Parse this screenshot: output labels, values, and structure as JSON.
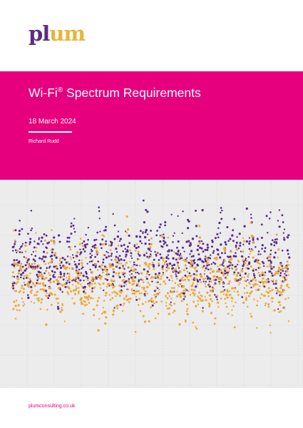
{
  "brand": {
    "logo_part1": "pl",
    "logo_part2": "um",
    "color_purple": "#5a2d82",
    "color_gold": "#e8b53a"
  },
  "header": {
    "title_main": "Wi-Fi",
    "title_mark": "®",
    "title_rest": " Spectrum Requirements",
    "date": "18 March 2024",
    "author": "Richard Rudd",
    "band_color": "#e6007e"
  },
  "artwork": {
    "description_series": [
      "purple",
      "gold"
    ],
    "series_colors": [
      "#5b2d8e",
      "#eaa93a"
    ],
    "background": "#ececec"
  },
  "footer": {
    "url": "plumconsulting.co.uk"
  }
}
